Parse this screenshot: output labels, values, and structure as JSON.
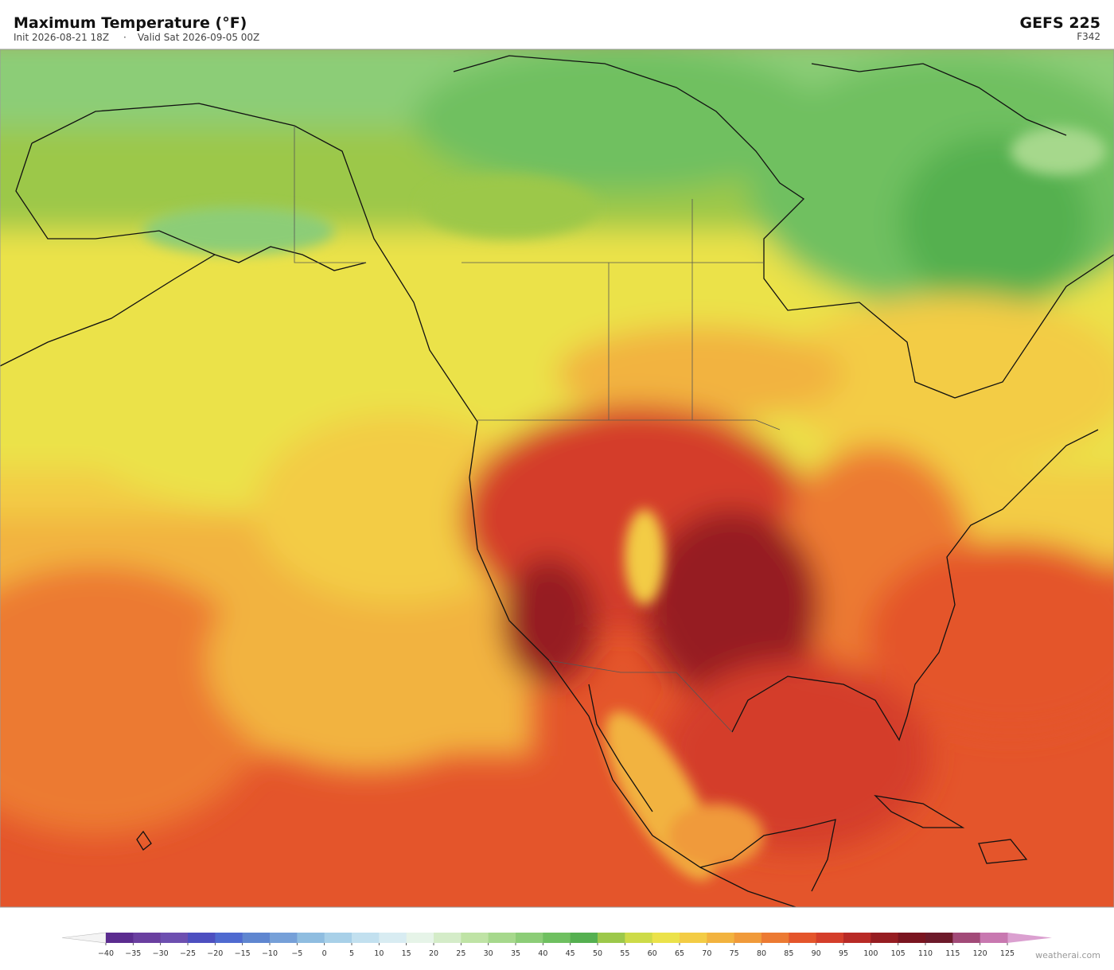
{
  "header": {
    "title": "Maximum Temperature  (°F)",
    "init": "Init 2026-08-21 18Z",
    "separator": "·",
    "valid": "Valid Sat 2026-09-05 00Z",
    "model": "GEFS  225",
    "forecast_hour": "F342"
  },
  "colorbar": {
    "ticks": [
      {
        "value": -40,
        "label": "−40"
      },
      {
        "value": -35,
        "label": "−35"
      },
      {
        "value": -30,
        "label": "−30"
      },
      {
        "value": -25,
        "label": "−25"
      },
      {
        "value": -20,
        "label": "−20"
      },
      {
        "value": -15,
        "label": "−15"
      },
      {
        "value": -10,
        "label": "−10"
      },
      {
        "value": -5,
        "label": "−5"
      },
      0,
      5,
      10,
      15,
      20,
      25,
      30,
      35,
      40,
      45,
      50,
      55,
      60,
      65,
      70,
      75,
      80,
      85,
      90,
      95,
      100,
      105,
      110,
      115,
      120,
      125
    ],
    "colors": [
      "#5b2c8f",
      "#6a3fa0",
      "#6d4fb0",
      "#4d4fc0",
      "#4f6ad0",
      "#5f86d0",
      "#76a0d8",
      "#8fbde0",
      "#a8d0e8",
      "#c2e0ef",
      "#d8ecf2",
      "#e6f4e8",
      "#d4ecc8",
      "#bfe3a5",
      "#a6d88c",
      "#8ccd77",
      "#6fc060",
      "#55b050",
      "#9cc84a",
      "#cddb48",
      "#ebe24a",
      "#f3cc45",
      "#f2b33f",
      "#f09a3a",
      "#ec7a33",
      "#e4552b",
      "#d43e2a",
      "#b82a26",
      "#961d22",
      "#7a1520",
      "#6d1a2a",
      "#a24a78",
      "#c878b0"
    ],
    "under_color": "#f4f4f4",
    "over_color": "#dba0d0"
  },
  "credit": "weatherai.com"
}
